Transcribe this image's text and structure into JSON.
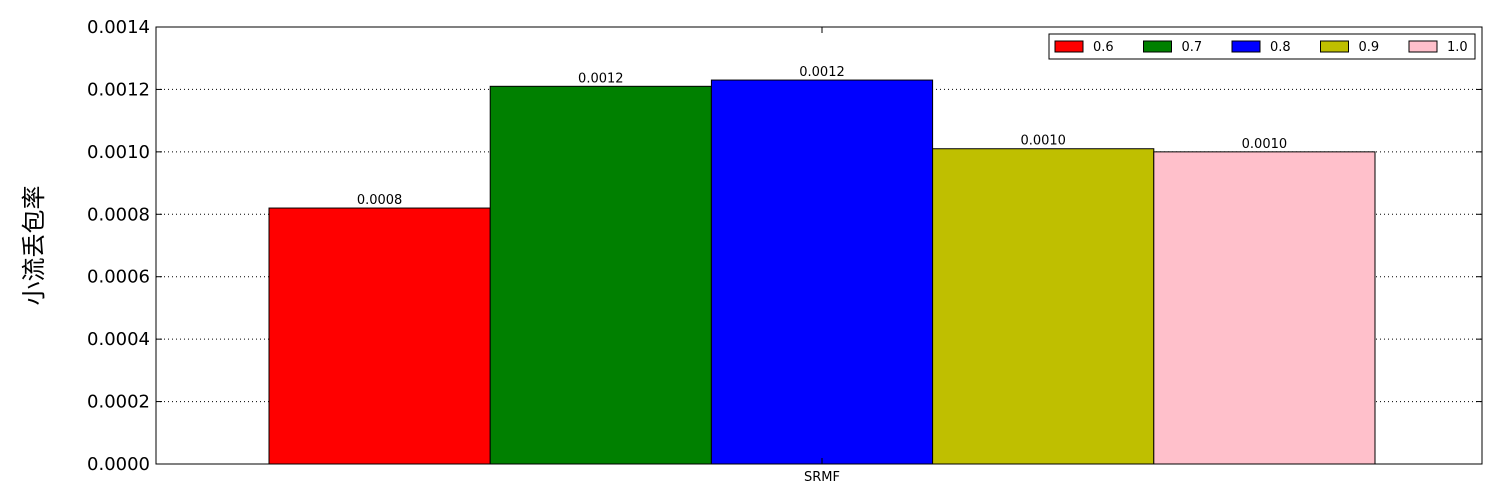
{
  "chart_data": {
    "type": "bar",
    "categories": [
      "SRMF"
    ],
    "series": [
      {
        "name": "0.6",
        "color": "#ff0000",
        "values": [
          0.00082
        ],
        "data_label": "0.0008"
      },
      {
        "name": "0.7",
        "color": "#008000",
        "values": [
          0.00121
        ],
        "data_label": "0.0012"
      },
      {
        "name": "0.8",
        "color": "#0000ff",
        "values": [
          0.00123
        ],
        "data_label": "0.0012"
      },
      {
        "name": "0.9",
        "color": "#bfbf00",
        "values": [
          0.00101
        ],
        "data_label": "0.0010"
      },
      {
        "name": "1.0",
        "color": "#ffc0cb",
        "values": [
          0.001
        ],
        "data_label": "0.0010"
      }
    ],
    "title": "",
    "xlabel": "",
    "ylabel": "小流丢包率",
    "ylim": [
      0,
      0.0014
    ],
    "yticks": [
      "0.0000",
      "0.0002",
      "0.0004",
      "0.0006",
      "0.0008",
      "0.0010",
      "0.0012",
      "0.0014"
    ],
    "grid": "horizontal dotted",
    "legend_position": "top-right"
  }
}
